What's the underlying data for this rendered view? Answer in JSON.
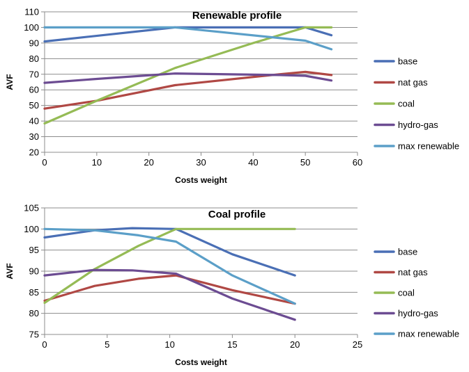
{
  "chart_data": [
    {
      "type": "line",
      "title": "Renewable profile",
      "xlabel": "Costs weight",
      "ylabel": "AVF",
      "xlim": [
        0,
        60
      ],
      "ylim": [
        20,
        110
      ],
      "xticks": [
        0,
        10,
        20,
        30,
        40,
        50,
        60
      ],
      "yticks": [
        20,
        30,
        40,
        50,
        60,
        70,
        80,
        90,
        100,
        110
      ],
      "grid": "horizontal",
      "legend": "right",
      "series": [
        {
          "name": "base",
          "color": "#4a6fb5",
          "points": [
            [
              0,
              91
            ],
            [
              25,
              100
            ],
            [
              50,
              100
            ],
            [
              55,
              95
            ]
          ]
        },
        {
          "name": "nat gas",
          "color": "#b04844",
          "points": [
            [
              0,
              48
            ],
            [
              10,
              53
            ],
            [
              25,
              63
            ],
            [
              45,
              70
            ],
            [
              50,
              71.5
            ],
            [
              55,
              69.5
            ]
          ]
        },
        {
          "name": "coal",
          "color": "#95bb55",
          "points": [
            [
              0,
              38.5
            ],
            [
              10,
              53
            ],
            [
              25,
              74
            ],
            [
              40,
              90
            ],
            [
              50,
              100
            ],
            [
              55,
              100
            ]
          ]
        },
        {
          "name": "hydro-gas",
          "color": "#6c4c92",
          "points": [
            [
              0,
              64.5
            ],
            [
              10,
              67
            ],
            [
              25,
              70.5
            ],
            [
              45,
              69.5
            ],
            [
              50,
              69
            ],
            [
              55,
              66
            ]
          ]
        },
        {
          "name": "max renewable",
          "color": "#5b9fc8",
          "points": [
            [
              0,
              100
            ],
            [
              25,
              100
            ],
            [
              50,
              91.5
            ],
            [
              55,
              86
            ]
          ]
        }
      ]
    },
    {
      "type": "line",
      "title": "Coal profile",
      "xlabel": "Costs weight",
      "ylabel": "AVF",
      "xlim": [
        0,
        25
      ],
      "ylim": [
        75,
        105
      ],
      "xticks": [
        0,
        5,
        10,
        15,
        20,
        25
      ],
      "yticks": [
        75,
        80,
        85,
        90,
        95,
        100,
        105
      ],
      "grid": "horizontal",
      "legend": "right",
      "series": [
        {
          "name": "base",
          "color": "#4a6fb5",
          "points": [
            [
              0,
              98
            ],
            [
              4,
              99.7
            ],
            [
              7,
              100.2
            ],
            [
              10.5,
              100
            ],
            [
              15,
              94
            ],
            [
              20,
              89
            ]
          ]
        },
        {
          "name": "nat gas",
          "color": "#b04844",
          "points": [
            [
              0,
              83
            ],
            [
              4,
              86.5
            ],
            [
              7.5,
              88.2
            ],
            [
              10.5,
              89
            ],
            [
              15,
              85.5
            ],
            [
              20,
              82.3
            ]
          ]
        },
        {
          "name": "coal",
          "color": "#95bb55",
          "points": [
            [
              0,
              82.5
            ],
            [
              4,
              90.5
            ],
            [
              7.5,
              96
            ],
            [
              10.5,
              100
            ],
            [
              15,
              100
            ],
            [
              20,
              100
            ]
          ]
        },
        {
          "name": "hydro-gas",
          "color": "#6c4c92",
          "points": [
            [
              0,
              89
            ],
            [
              4,
              90.3
            ],
            [
              7,
              90.2
            ],
            [
              10.5,
              89.4
            ],
            [
              15,
              83.5
            ],
            [
              20,
              78.5
            ]
          ]
        },
        {
          "name": "max renewable",
          "color": "#5b9fc8",
          "points": [
            [
              0,
              100
            ],
            [
              4,
              99.7
            ],
            [
              7.5,
              98.5
            ],
            [
              10.5,
              97
            ],
            [
              15,
              89
            ],
            [
              20,
              82.3
            ]
          ]
        }
      ]
    }
  ]
}
